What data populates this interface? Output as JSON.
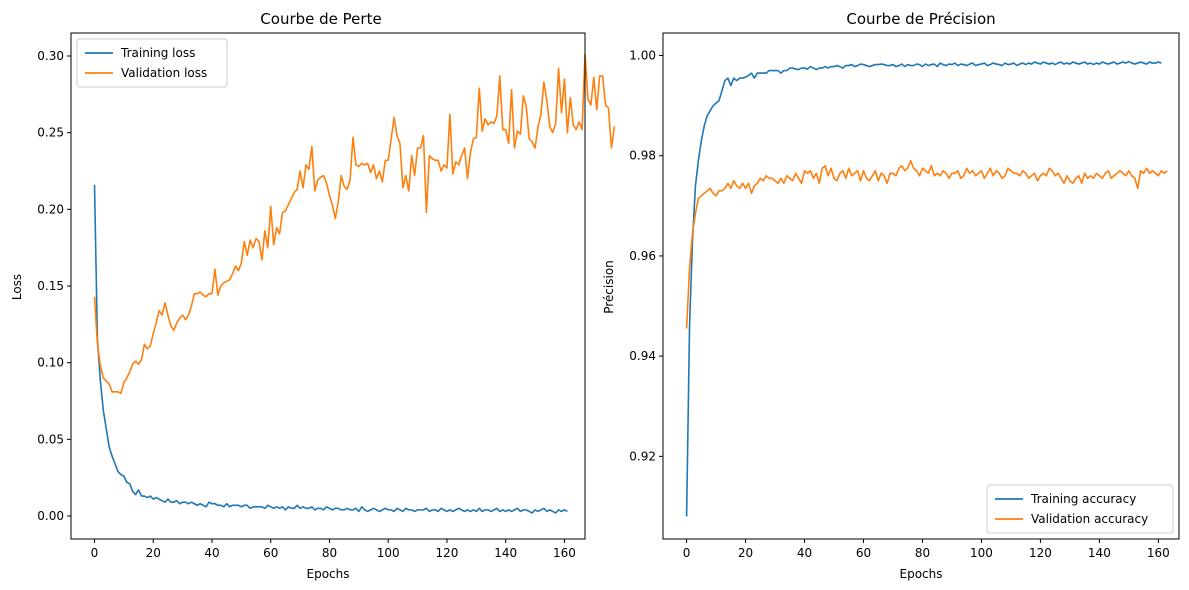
{
  "chart_data": [
    {
      "type": "line",
      "title": "Courbe de Perte",
      "xlabel": "Epochs",
      "ylabel": "Loss",
      "xlim": [
        -8,
        167
      ],
      "ylim": [
        -0.015,
        0.315
      ],
      "xticks": [
        0,
        20,
        40,
        60,
        80,
        100,
        120,
        140,
        160
      ],
      "yticks": [
        0.0,
        0.05,
        0.1,
        0.15,
        0.2,
        0.25,
        0.3
      ],
      "ytick_labels": [
        "0.00",
        "0.05",
        "0.10",
        "0.15",
        "0.20",
        "0.25",
        "0.30"
      ],
      "legend_position": "upper-left",
      "series": [
        {
          "name": "Training loss",
          "color": "#1f77b4",
          "values": [
            0.216,
            0.115,
            0.088,
            0.069,
            0.057,
            0.045,
            0.039,
            0.034,
            0.029,
            0.027,
            0.026,
            0.022,
            0.021,
            0.016,
            0.014,
            0.017,
            0.013,
            0.013,
            0.012,
            0.013,
            0.011,
            0.012,
            0.011,
            0.01,
            0.009,
            0.011,
            0.009,
            0.009,
            0.01,
            0.008,
            0.009,
            0.009,
            0.008,
            0.009,
            0.008,
            0.007,
            0.008,
            0.007,
            0.006,
            0.009,
            0.008,
            0.008,
            0.007,
            0.007,
            0.006,
            0.008,
            0.006,
            0.007,
            0.007,
            0.007,
            0.006,
            0.007,
            0.007,
            0.005,
            0.006,
            0.006,
            0.006,
            0.006,
            0.005,
            0.007,
            0.006,
            0.005,
            0.006,
            0.005,
            0.006,
            0.004,
            0.006,
            0.005,
            0.005,
            0.007,
            0.005,
            0.006,
            0.005,
            0.005,
            0.006,
            0.004,
            0.005,
            0.005,
            0.004,
            0.006,
            0.005,
            0.004,
            0.005,
            0.005,
            0.004,
            0.004,
            0.005,
            0.004,
            0.004,
            0.005,
            0.003,
            0.006,
            0.004,
            0.003,
            0.004,
            0.005,
            0.004,
            0.003,
            0.004,
            0.005,
            0.004,
            0.004,
            0.003,
            0.005,
            0.004,
            0.003,
            0.005,
            0.004,
            0.004,
            0.003,
            0.004,
            0.004,
            0.004,
            0.005,
            0.003,
            0.004,
            0.004,
            0.003,
            0.005,
            0.004,
            0.003,
            0.004,
            0.003,
            0.004,
            0.005,
            0.004,
            0.003,
            0.004,
            0.003,
            0.004,
            0.003,
            0.005,
            0.003,
            0.004,
            0.004,
            0.003,
            0.004,
            0.005,
            0.003,
            0.004,
            0.003,
            0.004,
            0.003,
            0.004,
            0.005,
            0.003,
            0.004,
            0.004,
            0.003,
            0.002,
            0.004,
            0.003,
            0.004,
            0.005,
            0.003,
            0.004,
            0.003,
            0.002,
            0.004,
            0.003,
            0.004,
            0.003
          ]
        },
        {
          "name": "Validation loss",
          "color": "#ff7f0e",
          "values": [
            0.143,
            0.112,
            0.098,
            0.09,
            0.088,
            0.086,
            0.081,
            0.081,
            0.081,
            0.08,
            0.087,
            0.09,
            0.094,
            0.099,
            0.101,
            0.099,
            0.102,
            0.112,
            0.109,
            0.111,
            0.119,
            0.126,
            0.134,
            0.131,
            0.139,
            0.131,
            0.124,
            0.121,
            0.126,
            0.129,
            0.131,
            0.128,
            0.131,
            0.137,
            0.145,
            0.145,
            0.146,
            0.144,
            0.143,
            0.145,
            0.145,
            0.161,
            0.144,
            0.15,
            0.152,
            0.153,
            0.154,
            0.158,
            0.163,
            0.16,
            0.165,
            0.179,
            0.17,
            0.18,
            0.175,
            0.181,
            0.179,
            0.167,
            0.186,
            0.175,
            0.202,
            0.177,
            0.188,
            0.184,
            0.198,
            0.199,
            0.203,
            0.207,
            0.211,
            0.213,
            0.225,
            0.214,
            0.229,
            0.226,
            0.241,
            0.212,
            0.219,
            0.221,
            0.222,
            0.217,
            0.209,
            0.203,
            0.194,
            0.205,
            0.222,
            0.215,
            0.213,
            0.219,
            0.247,
            0.229,
            0.228,
            0.23,
            0.229,
            0.23,
            0.224,
            0.229,
            0.22,
            0.225,
            0.218,
            0.232,
            0.232,
            0.246,
            0.26,
            0.248,
            0.243,
            0.214,
            0.222,
            0.212,
            0.235,
            0.222,
            0.24,
            0.24,
            0.248,
            0.198,
            0.235,
            0.233,
            0.232,
            0.232,
            0.225,
            0.229,
            0.227,
            0.262,
            0.223,
            0.231,
            0.229,
            0.235,
            0.24,
            0.22,
            0.237,
            0.246,
            0.247,
            0.279,
            0.251,
            0.259,
            0.255,
            0.257,
            0.256,
            0.261,
            0.287,
            0.252,
            0.252,
            0.243,
            0.278,
            0.24,
            0.251,
            0.249,
            0.274,
            0.267,
            0.246,
            0.244,
            0.24,
            0.254,
            0.262,
            0.283,
            0.271,
            0.254,
            0.25,
            0.256,
            0.292,
            0.263,
            0.285,
            0.25,
            0.273,
            0.255,
            0.252,
            0.257,
            0.252,
            0.301,
            0.272,
            0.268,
            0.286,
            0.265,
            0.287,
            0.287,
            0.268,
            0.266,
            0.24,
            0.254
          ]
        }
      ]
    },
    {
      "type": "line",
      "title": "Courbe de Précision",
      "xlabel": "Epochs",
      "ylabel": "Précision",
      "xlim": [
        -8,
        167
      ],
      "ylim": [
        0.9035,
        1.0045
      ],
      "xticks": [
        0,
        20,
        40,
        60,
        80,
        100,
        120,
        140,
        160
      ],
      "yticks": [
        0.92,
        0.94,
        0.96,
        0.98,
        1.0
      ],
      "ytick_labels": [
        "0.92",
        "0.94",
        "0.96",
        "0.98",
        "1.00"
      ],
      "legend_position": "lower-right",
      "series": [
        {
          "name": "Training accuracy",
          "color": "#1f77b4",
          "values": [
            0.908,
            0.946,
            0.963,
            0.974,
            0.979,
            0.983,
            0.986,
            0.988,
            0.989,
            0.99,
            0.9905,
            0.991,
            0.993,
            0.995,
            0.9955,
            0.994,
            0.9955,
            0.995,
            0.9955,
            0.9955,
            0.9957,
            0.996,
            0.9965,
            0.9955,
            0.9965,
            0.9965,
            0.9965,
            0.9965,
            0.997,
            0.997,
            0.997,
            0.997,
            0.9965,
            0.997,
            0.997,
            0.9975,
            0.9975,
            0.9973,
            0.9972,
            0.9975,
            0.9975,
            0.9973,
            0.9978,
            0.9975,
            0.9972,
            0.9975,
            0.9975,
            0.9978,
            0.9975,
            0.9978,
            0.9978,
            0.998,
            0.9978,
            0.9975,
            0.998,
            0.998,
            0.9982,
            0.9978,
            0.998,
            0.9983,
            0.9982,
            0.998,
            0.9978,
            0.998,
            0.9982,
            0.9982,
            0.9983,
            0.9982,
            0.998,
            0.998,
            0.9982,
            0.9978,
            0.998,
            0.9983,
            0.9978,
            0.9982,
            0.998,
            0.998,
            0.9983,
            0.9982,
            0.9978,
            0.9983,
            0.998,
            0.9982,
            0.9983,
            0.9978,
            0.9985,
            0.9982,
            0.998,
            0.9983,
            0.9982,
            0.9985,
            0.998,
            0.9983,
            0.9982,
            0.998,
            0.9983,
            0.9985,
            0.998,
            0.9982,
            0.9983,
            0.9985,
            0.998,
            0.9982,
            0.9985,
            0.9983,
            0.9982,
            0.998,
            0.9985,
            0.9982,
            0.9983,
            0.9985,
            0.998,
            0.9983,
            0.9985,
            0.9982,
            0.9985,
            0.9983,
            0.9987,
            0.9985,
            0.9983,
            0.9987,
            0.9985,
            0.9983,
            0.9985,
            0.9982,
            0.9985,
            0.9987,
            0.9983,
            0.9985,
            0.9983,
            0.9987,
            0.9985,
            0.9983,
            0.9985,
            0.9987,
            0.9983,
            0.9985,
            0.9982,
            0.9985,
            0.9983,
            0.9987,
            0.9985,
            0.9983,
            0.9985,
            0.9987,
            0.9983,
            0.9985,
            0.9987,
            0.9985,
            0.9988,
            0.9985,
            0.9983,
            0.9985,
            0.9987,
            0.9985,
            0.9983,
            0.9987,
            0.9985,
            0.9985,
            0.9987,
            0.9985
          ]
        },
        {
          "name": "Validation accuracy",
          "color": "#ff7f0e",
          "values": [
            0.9455,
            0.9575,
            0.9645,
            0.9685,
            0.9715,
            0.972,
            0.9725,
            0.973,
            0.9735,
            0.9725,
            0.972,
            0.973,
            0.973,
            0.9735,
            0.9745,
            0.9735,
            0.975,
            0.974,
            0.9735,
            0.9745,
            0.9735,
            0.9745,
            0.9725,
            0.974,
            0.9745,
            0.9755,
            0.975,
            0.976,
            0.9755,
            0.9755,
            0.975,
            0.9745,
            0.9755,
            0.9745,
            0.976,
            0.9755,
            0.975,
            0.9765,
            0.9755,
            0.9745,
            0.977,
            0.9765,
            0.977,
            0.9755,
            0.9765,
            0.9745,
            0.9775,
            0.978,
            0.976,
            0.9775,
            0.9755,
            0.975,
            0.9765,
            0.977,
            0.9755,
            0.9775,
            0.976,
            0.9765,
            0.977,
            0.975,
            0.977,
            0.9755,
            0.975,
            0.976,
            0.977,
            0.975,
            0.9765,
            0.976,
            0.9745,
            0.9765,
            0.9765,
            0.976,
            0.9775,
            0.978,
            0.977,
            0.9775,
            0.979,
            0.9775,
            0.977,
            0.976,
            0.9775,
            0.977,
            0.9765,
            0.978,
            0.976,
            0.9765,
            0.976,
            0.977,
            0.9765,
            0.9755,
            0.9765,
            0.9765,
            0.977,
            0.9755,
            0.976,
            0.9775,
            0.9765,
            0.977,
            0.976,
            0.9765,
            0.977,
            0.9755,
            0.9765,
            0.9775,
            0.976,
            0.977,
            0.9765,
            0.9755,
            0.976,
            0.9775,
            0.977,
            0.9765,
            0.9765,
            0.976,
            0.977,
            0.9765,
            0.9755,
            0.976,
            0.9765,
            0.975,
            0.976,
            0.9765,
            0.976,
            0.9775,
            0.977,
            0.976,
            0.9765,
            0.9755,
            0.9745,
            0.976,
            0.975,
            0.9745,
            0.9755,
            0.976,
            0.9745,
            0.9765,
            0.9755,
            0.976,
            0.9755,
            0.9765,
            0.976,
            0.9755,
            0.9765,
            0.977,
            0.9755,
            0.976,
            0.9765,
            0.977,
            0.9765,
            0.976,
            0.977,
            0.976,
            0.9755,
            0.9735,
            0.977,
            0.9765,
            0.9775,
            0.9765,
            0.977,
            0.9765,
            0.976,
            0.977,
            0.9765,
            0.977
          ]
        }
      ]
    }
  ]
}
